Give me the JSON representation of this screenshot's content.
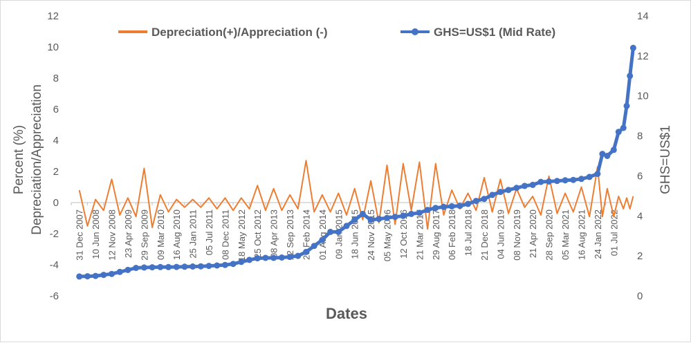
{
  "chart_data": {
    "type": "line",
    "title": "",
    "xlabel": "Dates",
    "ylabel_left_line1": "Percent (%)",
    "ylabel_left_line2": "Depreciation/Appreciation",
    "ylabel_right": "GHS=US$1",
    "ylim_left": [
      -6,
      12
    ],
    "ylim_right": [
      0,
      14
    ],
    "yticks_left": [
      "-6",
      "-4",
      "-2",
      "0",
      "2",
      "4",
      "6",
      "8",
      "10",
      "12"
    ],
    "yticks_right": [
      "0",
      "2",
      "4",
      "6",
      "8",
      "10",
      "12",
      "14"
    ],
    "x_tick_labels": [
      "31 Dec 2007",
      "10 Jun 2008",
      "12 Nov 2008",
      "23 Apr 2009",
      "29 Sep 2009",
      "09 Mar 2010",
      "16 Aug 2010",
      "25 Jan 2011",
      "05 Jul 2011",
      "08 Dec 2011",
      "18 May 2012",
      "25 Oct 2012",
      "08 Apr 2013",
      "12 Sep 2013",
      "20 Feb 2014",
      "01 Aug 2014",
      "09 Jan 2015",
      "18 Jun 2015",
      "24 Nov 2015",
      "05 May 2016",
      "12 Oct 2016",
      "21 Mar 2017",
      "29 Aug 2017",
      "06 Feb 2018",
      "18 Jul 2018",
      "21 Dec 2018",
      "04 Jun 2019",
      "08 Nov 2019",
      "21 Apr 2020",
      "28 Sep 2020",
      "05 Mar 2021",
      "16 Aug 2021",
      "24 Jan 2022",
      "01 Jul 2022"
    ],
    "legend_position": "top",
    "grid": false,
    "series": [
      {
        "name": "Depreciation(+)/Appreciation (-)",
        "axis": "left",
        "color": "#ED7D31",
        "marker": "none",
        "x": [
          0,
          0.5,
          1,
          1.5,
          2,
          2.5,
          3,
          3.5,
          4,
          4.5,
          5,
          5.5,
          6,
          6.5,
          7,
          7.5,
          8,
          8.5,
          9,
          9.5,
          10,
          10.5,
          11,
          11.5,
          12,
          12.5,
          13,
          13.5,
          14,
          14.5,
          15,
          15.5,
          16,
          16.5,
          17,
          17.5,
          18,
          18.5,
          19,
          19.5,
          20,
          20.5,
          21,
          21.5,
          22,
          22.5,
          23,
          23.5,
          24,
          24.5,
          25,
          25.5,
          26,
          26.5,
          27,
          27.5,
          28,
          28.5,
          29,
          29.5,
          30,
          30.5,
          31,
          31.5,
          32,
          32.3,
          32.6,
          33,
          33.3,
          33.6,
          33.8,
          34,
          34.2
        ],
        "y": [
          0.8,
          -1.5,
          0.2,
          -0.5,
          1.5,
          -0.8,
          0.3,
          -0.9,
          2.2,
          -1.6,
          0.5,
          -0.6,
          0.2,
          -0.3,
          0.2,
          -0.3,
          0.3,
          -0.4,
          0.3,
          -0.5,
          0.3,
          -0.4,
          1.1,
          -0.5,
          0.9,
          -0.5,
          0.5,
          -0.4,
          2.7,
          -0.6,
          0.5,
          -0.6,
          0.6,
          -0.8,
          0.9,
          -1.1,
          1.4,
          -1.3,
          2.4,
          -1.4,
          2.5,
          -0.5,
          2.6,
          -1.7,
          2.5,
          -0.8,
          0.8,
          -0.4,
          0.6,
          -0.5,
          1.6,
          -0.6,
          1.5,
          -0.7,
          0.9,
          -0.3,
          0.4,
          -0.8,
          1.7,
          -0.7,
          0.6,
          -0.6,
          1.0,
          -0.9,
          2.3,
          -0.9,
          0.9,
          -0.9,
          0.4,
          -0.4,
          0.3,
          -0.4,
          0.4
        ]
      },
      {
        "name": "GHS=US$1 (Mid Rate)",
        "axis": "right",
        "color": "#4472C4",
        "marker": "circle",
        "x": [
          0,
          0.5,
          1,
          1.5,
          2,
          2.5,
          3,
          3.5,
          4,
          4.5,
          5,
          5.5,
          6,
          6.5,
          7,
          7.5,
          8,
          8.5,
          9,
          9.5,
          10,
          10.5,
          11,
          11.5,
          12,
          12.5,
          13,
          13.5,
          14,
          14.5,
          15,
          15.5,
          16,
          16.5,
          17,
          17.5,
          18,
          18.5,
          19,
          19.5,
          20,
          20.5,
          21,
          21.5,
          22,
          22.5,
          23,
          23.5,
          24,
          24.5,
          25,
          25.5,
          26,
          26.5,
          27,
          27.5,
          28,
          28.5,
          29,
          29.5,
          30,
          30.5,
          31,
          31.5,
          32,
          32.3,
          32.6,
          33,
          33.3,
          33.6,
          33.8,
          34,
          34.2
        ],
        "y": [
          0.97,
          0.98,
          1.0,
          1.05,
          1.1,
          1.2,
          1.3,
          1.4,
          1.42,
          1.43,
          1.44,
          1.44,
          1.45,
          1.46,
          1.47,
          1.48,
          1.5,
          1.52,
          1.55,
          1.6,
          1.7,
          1.8,
          1.88,
          1.9,
          1.9,
          1.92,
          1.95,
          2.0,
          2.2,
          2.5,
          2.8,
          3.2,
          3.2,
          3.5,
          3.8,
          4.1,
          3.8,
          3.85,
          3.9,
          3.95,
          4.0,
          4.1,
          4.15,
          4.3,
          4.4,
          4.45,
          4.48,
          4.5,
          4.6,
          4.75,
          4.85,
          5.05,
          5.2,
          5.3,
          5.4,
          5.5,
          5.55,
          5.7,
          5.72,
          5.75,
          5.78,
          5.8,
          5.85,
          5.95,
          6.1,
          7.1,
          7.0,
          7.3,
          8.2,
          8.4,
          9.5,
          11.0,
          12.4
        ]
      }
    ]
  }
}
